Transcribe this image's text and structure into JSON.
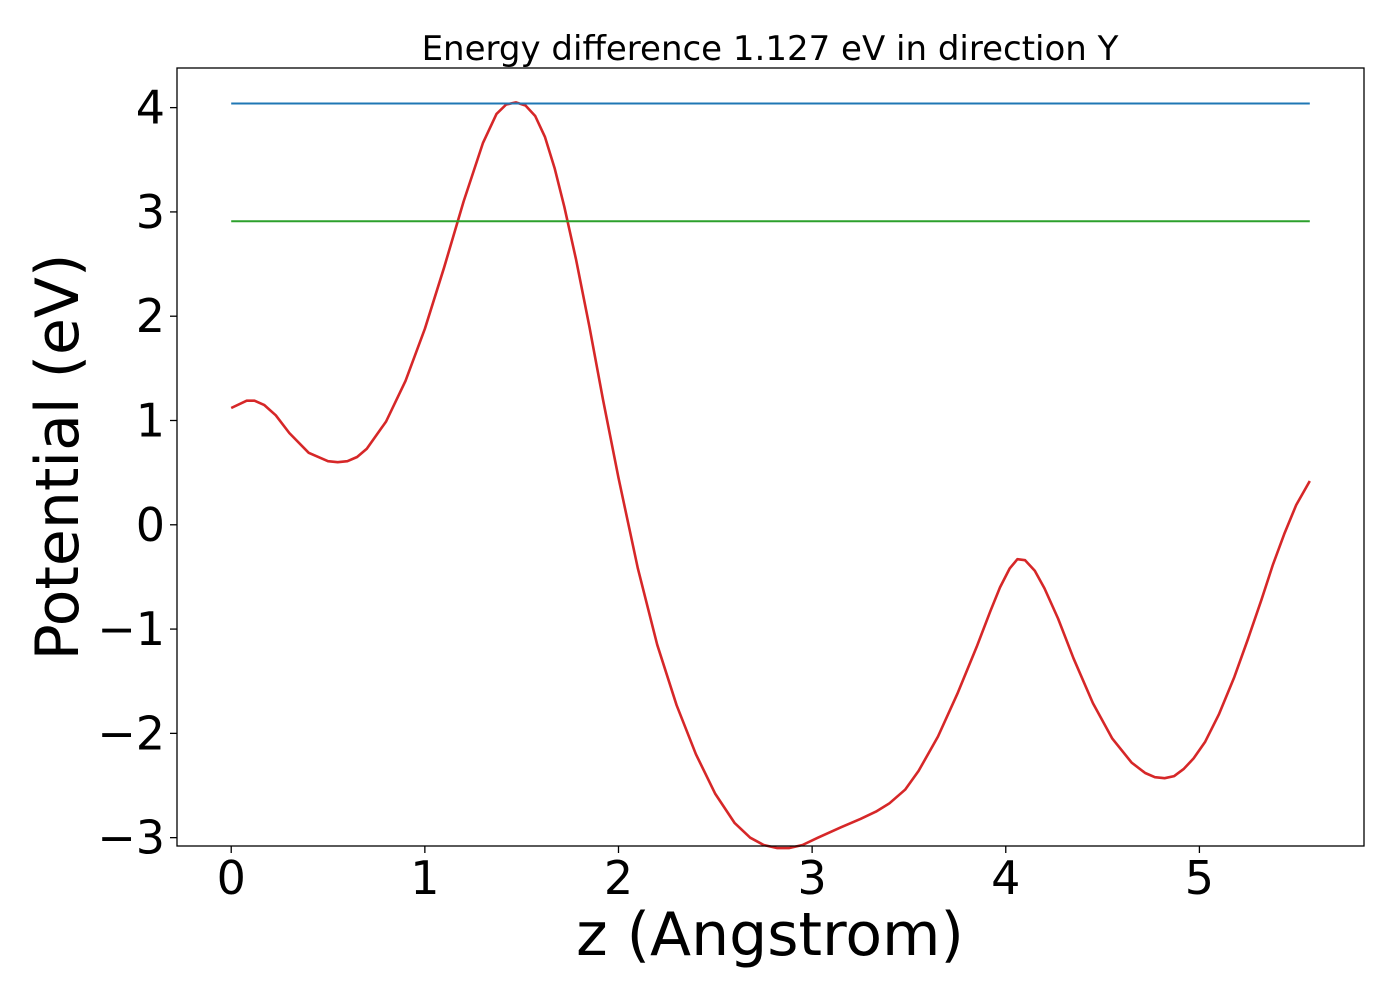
{
  "chart_data": {
    "type": "line",
    "title": "Energy difference 1.127 eV in direction Y",
    "xlabel": "z (Angstrom)",
    "ylabel": "Potential (eV)",
    "xlim": [
      -0.28,
      5.85
    ],
    "ylim": [
      -3.08,
      4.38
    ],
    "xticks": [
      0,
      1,
      2,
      3,
      4,
      5
    ],
    "xtick_labels": [
      "0",
      "1",
      "2",
      "3",
      "4",
      "5"
    ],
    "yticks": [
      -3,
      -2,
      -1,
      0,
      1,
      2,
      3,
      4
    ],
    "ytick_labels": [
      "−3",
      "−2",
      "−1",
      "0",
      "1",
      "2",
      "3",
      "4"
    ],
    "grid": false,
    "series": [
      {
        "color": "#d62728",
        "x": [
          0.0,
          0.08,
          0.12,
          0.17,
          0.23,
          0.3,
          0.4,
          0.5,
          0.55,
          0.6,
          0.65,
          0.7,
          0.8,
          0.9,
          1.0,
          1.1,
          1.2,
          1.3,
          1.37,
          1.42,
          1.47,
          1.52,
          1.57,
          1.62,
          1.67,
          1.72,
          1.78,
          1.85,
          1.92,
          2.0,
          2.1,
          2.2,
          2.3,
          2.4,
          2.5,
          2.6,
          2.68,
          2.75,
          2.82,
          2.88,
          2.95,
          3.03,
          3.15,
          3.25,
          3.33,
          3.4,
          3.48,
          3.55,
          3.65,
          3.75,
          3.85,
          3.92,
          3.97,
          4.02,
          4.06,
          4.1,
          4.15,
          4.2,
          4.27,
          4.35,
          4.45,
          4.55,
          4.65,
          4.72,
          4.77,
          4.82,
          4.87,
          4.92,
          4.97,
          5.03,
          5.1,
          5.18,
          5.25,
          5.32,
          5.38,
          5.44,
          5.5,
          5.57
        ],
        "y": [
          1.12,
          1.19,
          1.19,
          1.15,
          1.05,
          0.88,
          0.69,
          0.61,
          0.6,
          0.61,
          0.65,
          0.73,
          0.99,
          1.38,
          1.88,
          2.47,
          3.1,
          3.66,
          3.94,
          4.03,
          4.05,
          4.02,
          3.92,
          3.72,
          3.42,
          3.05,
          2.55,
          1.9,
          1.2,
          0.45,
          -0.42,
          -1.15,
          -1.73,
          -2.2,
          -2.58,
          -2.86,
          -3.0,
          -3.07,
          -3.1,
          -3.1,
          -3.07,
          -3.0,
          -2.9,
          -2.82,
          -2.75,
          -2.67,
          -2.54,
          -2.36,
          -2.03,
          -1.62,
          -1.17,
          -0.83,
          -0.6,
          -0.42,
          -0.33,
          -0.34,
          -0.44,
          -0.61,
          -0.9,
          -1.28,
          -1.71,
          -2.05,
          -2.28,
          -2.38,
          -2.42,
          -2.43,
          -2.41,
          -2.34,
          -2.24,
          -2.08,
          -1.82,
          -1.46,
          -1.1,
          -0.72,
          -0.38,
          -0.08,
          0.19,
          0.42
        ]
      },
      {
        "color": "#1f77b4",
        "x": [
          0.0,
          5.57
        ],
        "y": [
          4.04,
          4.04
        ]
      },
      {
        "color": "#2ca02c",
        "x": [
          0.0,
          5.57
        ],
        "y": [
          2.91,
          2.91
        ]
      }
    ]
  }
}
